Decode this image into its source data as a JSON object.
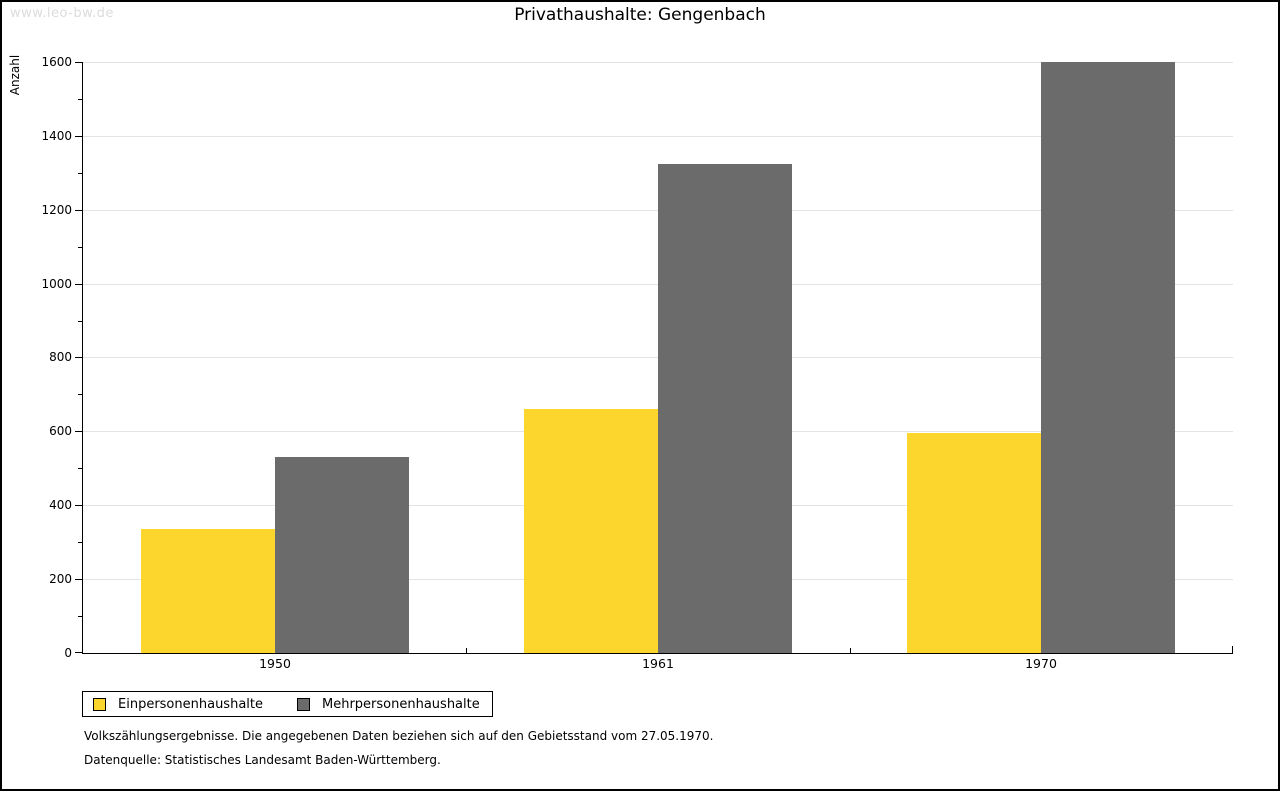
{
  "page": {
    "watermark": "www.leo-bw.de"
  },
  "chart_data": {
    "type": "bar",
    "title": "Privathaushalte: Gengenbach",
    "xlabel": "",
    "ylabel": "Anzahl",
    "categories": [
      "1950",
      "1961",
      "1970"
    ],
    "series": [
      {
        "name": "Einpersonenhaushalte",
        "color": "#FCD52D",
        "values": [
          335,
          660,
          595
        ]
      },
      {
        "name": "Mehrpersonenhaushalte",
        "color": "#6B6B6B",
        "values": [
          530,
          1325,
          1600
        ]
      }
    ],
    "ylim": [
      0,
      1600
    ],
    "ytick_major": 200,
    "ytick_minor": 100,
    "grid": true,
    "legend_position": "bottom-left"
  },
  "notes": {
    "line1": "Volkszählungsergebnisse. Die angegebenen Daten beziehen sich auf den Gebietsstand vom 27.05.1970.",
    "line2": "Datenquelle: Statistisches Landesamt Baden-Württemberg."
  },
  "colors": {
    "series1": "#FCD52D",
    "series2": "#6B6B6B",
    "gridline": "#E3E3E3",
    "axis": "#000000",
    "watermark": "#DCDCDC",
    "frame_border": "#000000",
    "background": "#FFFFFF"
  }
}
